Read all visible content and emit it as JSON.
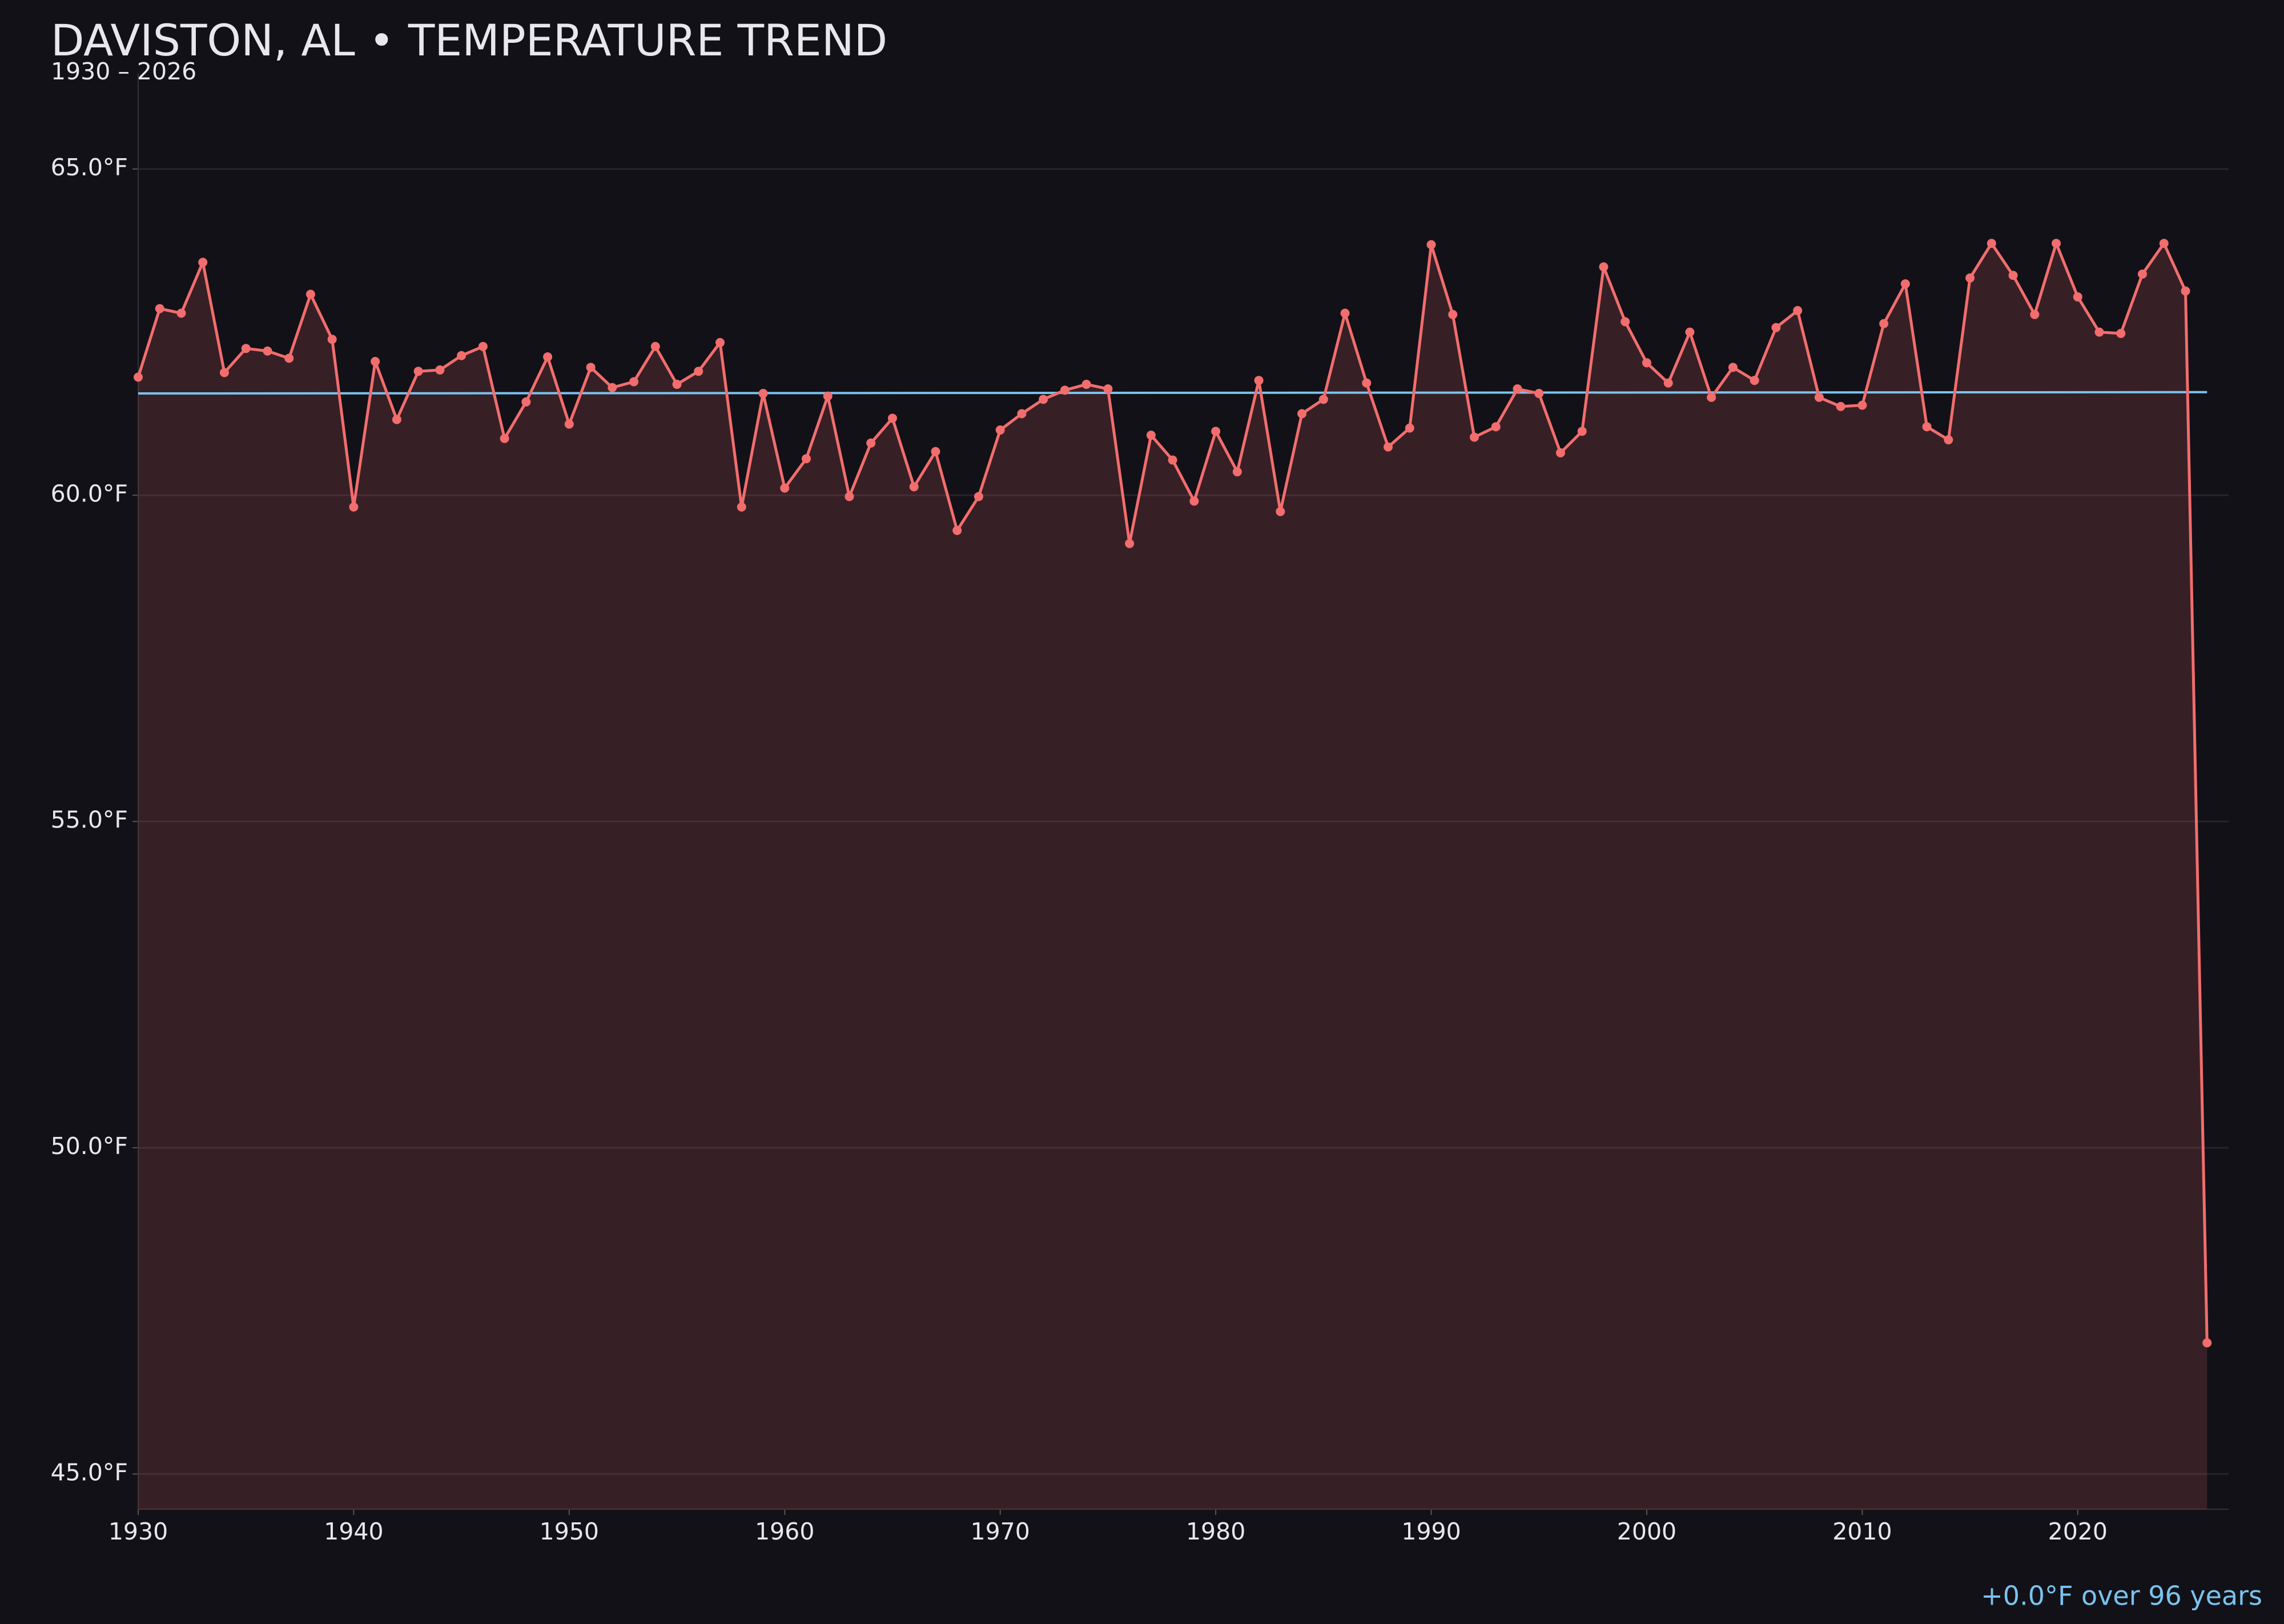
{
  "chart_data": {
    "type": "line",
    "title": "DAVISTON, AL • TEMPERATURE TREND",
    "subtitle": "1930 – 2026",
    "annotation": "+0.0°F over 96 years",
    "x": [
      1930,
      1931,
      1932,
      1933,
      1934,
      1935,
      1936,
      1937,
      1938,
      1939,
      1940,
      1941,
      1942,
      1943,
      1944,
      1945,
      1946,
      1947,
      1948,
      1949,
      1950,
      1951,
      1952,
      1953,
      1954,
      1955,
      1956,
      1957,
      1958,
      1959,
      1960,
      1961,
      1962,
      1963,
      1964,
      1965,
      1966,
      1967,
      1968,
      1969,
      1970,
      1971,
      1972,
      1973,
      1974,
      1975,
      1976,
      1977,
      1978,
      1979,
      1980,
      1981,
      1982,
      1983,
      1984,
      1985,
      1986,
      1987,
      1988,
      1989,
      1990,
      1991,
      1992,
      1993,
      1994,
      1995,
      1996,
      1997,
      1998,
      1999,
      2000,
      2001,
      2002,
      2003,
      2004,
      2005,
      2006,
      2007,
      2008,
      2009,
      2010,
      2011,
      2012,
      2013,
      2014,
      2015,
      2016,
      2017,
      2018,
      2019,
      2020,
      2021,
      2022,
      2023,
      2024,
      2025,
      2026
    ],
    "series": [
      {
        "color": "#f26d6d",
        "values": [
          61.81,
          62.86,
          62.79,
          63.57,
          61.88,
          62.25,
          62.21,
          62.1,
          63.08,
          62.39,
          59.82,
          62.05,
          61.16,
          61.9,
          61.92,
          62.14,
          62.28,
          60.87,
          61.43,
          62.12,
          61.09,
          61.96,
          61.65,
          61.74,
          62.28,
          61.7,
          61.9,
          62.34,
          59.82,
          61.56,
          60.11,
          60.56,
          61.52,
          59.98,
          60.8,
          61.18,
          60.13,
          60.67,
          59.46,
          59.98,
          61.0,
          61.25,
          61.47,
          61.61,
          61.7,
          61.63,
          59.26,
          60.92,
          60.54,
          59.91,
          60.98,
          60.36,
          61.76,
          59.75,
          61.25,
          61.47,
          62.79,
          61.72,
          60.74,
          61.03,
          63.84,
          62.77,
          60.89,
          61.05,
          61.63,
          61.56,
          60.65,
          60.98,
          63.5,
          62.66,
          62.03,
          61.72,
          62.5,
          61.5,
          61.96,
          61.76,
          62.57,
          62.83,
          61.5,
          61.36,
          61.38,
          62.63,
          63.24,
          61.05,
          60.85,
          63.33,
          63.86,
          63.37,
          62.77,
          63.86,
          63.04,
          62.5,
          62.48,
          63.39,
          63.86,
          63.13,
          47.01
        ]
      }
    ],
    "trend": {
      "color": "#7ac3ee",
      "x": [
        1930,
        2026
      ],
      "values": [
        61.56,
        61.58
      ]
    },
    "fill": true,
    "xlim": [
      1930,
      2027
    ],
    "ylim": [
      44.46,
      66.47
    ],
    "xticks": [
      1930,
      1940,
      1950,
      1960,
      1970,
      1980,
      1990,
      2000,
      2010,
      2020
    ],
    "yticks": [
      {
        "value": 45,
        "label": "45.0°F"
      },
      {
        "value": 50,
        "label": "50.0°F"
      },
      {
        "value": 55,
        "label": "55.0°F"
      },
      {
        "value": 60,
        "label": "60.0°F"
      },
      {
        "value": 65,
        "label": "65.0°F"
      }
    ],
    "grid": true
  }
}
